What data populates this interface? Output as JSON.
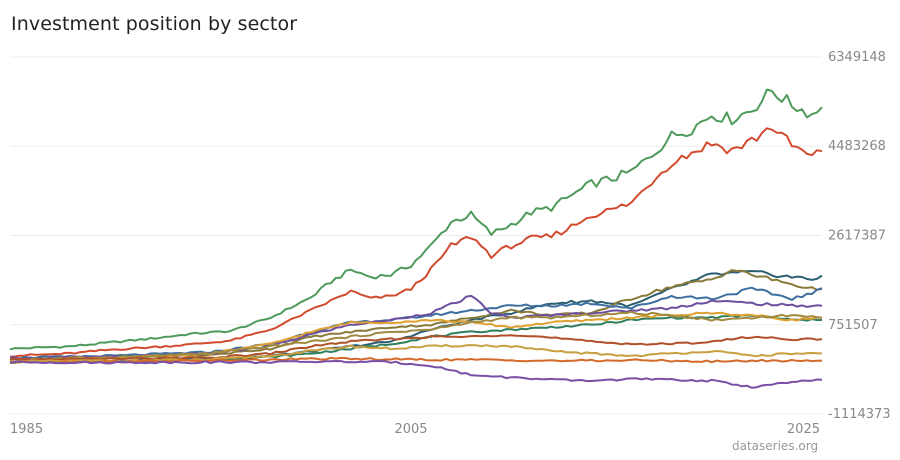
{
  "title": "Investment position by sector",
  "credit": "dataseries.org",
  "chart_data": {
    "type": "line",
    "title": "Investment position by sector",
    "xlabel": "",
    "ylabel": "",
    "xlim": [
      1985.0,
      2025.5
    ],
    "ylim": [
      -1114373,
      6349148
    ],
    "y_ticks": [
      6349148,
      4483268,
      2617387,
      751507,
      -1114373
    ],
    "x_ticks": [
      1985,
      2005,
      2025
    ],
    "grid": true,
    "legend": "none",
    "series": [
      {
        "color": "#4e9a5b",
        "points": [
          [
            1985,
            250000
          ],
          [
            1988,
            300000
          ],
          [
            1990,
            380000
          ],
          [
            1992,
            460000
          ],
          [
            1994,
            560000
          ],
          [
            1996,
            620000
          ],
          [
            1998,
            900000
          ],
          [
            2000,
            1320000
          ],
          [
            2001,
            1650000
          ],
          [
            2002,
            1900000
          ],
          [
            2003,
            1750000
          ],
          [
            2004,
            1800000
          ],
          [
            2005,
            2000000
          ],
          [
            2006,
            2400000
          ],
          [
            2007,
            2900000
          ],
          [
            2008,
            3050000
          ],
          [
            2009,
            2650000
          ],
          [
            2010,
            2850000
          ],
          [
            2011,
            3100000
          ],
          [
            2012,
            3200000
          ],
          [
            2013,
            3450000
          ],
          [
            2014,
            3700000
          ],
          [
            2015,
            3800000
          ],
          [
            2016,
            3950000
          ],
          [
            2017,
            4300000
          ],
          [
            2018,
            4700000
          ],
          [
            2019,
            4850000
          ],
          [
            2020,
            5150000
          ],
          [
            2021,
            5050000
          ],
          [
            2022,
            5250000
          ],
          [
            2023,
            5650000
          ],
          [
            2024,
            5350000
          ],
          [
            2025,
            5150000
          ],
          [
            2025.5,
            5300000
          ]
        ]
      },
      {
        "color": "#d24b2e",
        "points": [
          [
            1985,
            100000
          ],
          [
            1988,
            150000
          ],
          [
            1990,
            230000
          ],
          [
            1992,
            280000
          ],
          [
            1994,
            340000
          ],
          [
            1996,
            420000
          ],
          [
            1998,
            650000
          ],
          [
            2000,
            1050000
          ],
          [
            2001,
            1250000
          ],
          [
            2002,
            1450000
          ],
          [
            2003,
            1300000
          ],
          [
            2004,
            1350000
          ],
          [
            2005,
            1500000
          ],
          [
            2006,
            1900000
          ],
          [
            2007,
            2400000
          ],
          [
            2008,
            2600000
          ],
          [
            2009,
            2200000
          ],
          [
            2010,
            2400000
          ],
          [
            2011,
            2550000
          ],
          [
            2012,
            2600000
          ],
          [
            2013,
            2800000
          ],
          [
            2014,
            3050000
          ],
          [
            2015,
            3150000
          ],
          [
            2016,
            3300000
          ],
          [
            2017,
            3750000
          ],
          [
            2018,
            4150000
          ],
          [
            2019,
            4350000
          ],
          [
            2020,
            4550000
          ],
          [
            2021,
            4400000
          ],
          [
            2022,
            4600000
          ],
          [
            2023,
            4900000
          ],
          [
            2024,
            4500000
          ],
          [
            2025,
            4250000
          ],
          [
            2025.5,
            4380000
          ]
        ]
      },
      {
        "color": "#2d5f73",
        "points": [
          [
            1985,
            -30000
          ],
          [
            1990,
            0
          ],
          [
            1995,
            30000
          ],
          [
            1998,
            100000
          ],
          [
            2000,
            200000
          ],
          [
            2002,
            300000
          ],
          [
            2004,
            400000
          ],
          [
            2006,
            650000
          ],
          [
            2008,
            850000
          ],
          [
            2010,
            1000000
          ],
          [
            2012,
            1200000
          ],
          [
            2014,
            1250000
          ],
          [
            2016,
            1150000
          ],
          [
            2018,
            1500000
          ],
          [
            2020,
            1800000
          ],
          [
            2022,
            1850000
          ],
          [
            2024,
            1750000
          ],
          [
            2025,
            1700000
          ],
          [
            2025.5,
            1780000
          ]
        ]
      },
      {
        "color": "#8a7a3a",
        "points": [
          [
            1985,
            20000
          ],
          [
            1990,
            60000
          ],
          [
            1995,
            120000
          ],
          [
            1998,
            250000
          ],
          [
            2000,
            500000
          ],
          [
            2002,
            600000
          ],
          [
            2004,
            700000
          ],
          [
            2006,
            750000
          ],
          [
            2008,
            900000
          ],
          [
            2010,
            1050000
          ],
          [
            2012,
            950000
          ],
          [
            2014,
            1000000
          ],
          [
            2016,
            1300000
          ],
          [
            2018,
            1550000
          ],
          [
            2020,
            1700000
          ],
          [
            2021,
            1900000
          ],
          [
            2022,
            1800000
          ],
          [
            2024,
            1600000
          ],
          [
            2025,
            1500000
          ],
          [
            2025.5,
            1520000
          ]
        ]
      },
      {
        "color": "#3d6f9f",
        "points": [
          [
            1985,
            60000
          ],
          [
            1990,
            100000
          ],
          [
            1995,
            180000
          ],
          [
            1998,
            350000
          ],
          [
            2000,
            600000
          ],
          [
            2002,
            800000
          ],
          [
            2004,
            850000
          ],
          [
            2006,
            950000
          ],
          [
            2008,
            1050000
          ],
          [
            2010,
            1150000
          ],
          [
            2012,
            1150000
          ],
          [
            2014,
            1200000
          ],
          [
            2016,
            1100000
          ],
          [
            2018,
            1350000
          ],
          [
            2020,
            1300000
          ],
          [
            2022,
            1500000
          ],
          [
            2024,
            1300000
          ],
          [
            2025,
            1400000
          ],
          [
            2025.5,
            1500000
          ]
        ]
      },
      {
        "color": "#6d4f9f",
        "points": [
          [
            1985,
            50000
          ],
          [
            1990,
            80000
          ],
          [
            1995,
            150000
          ],
          [
            1998,
            300000
          ],
          [
            2000,
            550000
          ],
          [
            2002,
            750000
          ],
          [
            2004,
            850000
          ],
          [
            2006,
            1000000
          ],
          [
            2008,
            1350000
          ],
          [
            2009,
            1000000
          ],
          [
            2010,
            900000
          ],
          [
            2012,
            950000
          ],
          [
            2014,
            1000000
          ],
          [
            2016,
            1050000
          ],
          [
            2018,
            1100000
          ],
          [
            2020,
            1250000
          ],
          [
            2022,
            1200000
          ],
          [
            2024,
            1150000
          ],
          [
            2025.5,
            1150000
          ]
        ]
      },
      {
        "color": "#2f7f5f",
        "points": [
          [
            1985,
            -30000
          ],
          [
            1990,
            -20000
          ],
          [
            1995,
            20000
          ],
          [
            1998,
            80000
          ],
          [
            2000,
            150000
          ],
          [
            2002,
            250000
          ],
          [
            2004,
            350000
          ],
          [
            2006,
            500000
          ],
          [
            2008,
            600000
          ],
          [
            2010,
            650000
          ],
          [
            2012,
            700000
          ],
          [
            2014,
            750000
          ],
          [
            2016,
            850000
          ],
          [
            2018,
            900000
          ],
          [
            2020,
            900000
          ],
          [
            2022,
            950000
          ],
          [
            2024,
            850000
          ],
          [
            2025.5,
            850000
          ]
        ]
      },
      {
        "color": "#e0a030",
        "points": [
          [
            1985,
            10000
          ],
          [
            1990,
            50000
          ],
          [
            1995,
            150000
          ],
          [
            1998,
            350000
          ],
          [
            2000,
            600000
          ],
          [
            2002,
            800000
          ],
          [
            2004,
            800000
          ],
          [
            2006,
            850000
          ],
          [
            2008,
            800000
          ],
          [
            2010,
            700000
          ],
          [
            2012,
            800000
          ],
          [
            2014,
            850000
          ],
          [
            2016,
            900000
          ],
          [
            2018,
            950000
          ],
          [
            2020,
            1000000
          ],
          [
            2022,
            950000
          ],
          [
            2024,
            850000
          ],
          [
            2025.5,
            900000
          ]
        ]
      },
      {
        "color": "#a08a40",
        "points": [
          [
            1985,
            30000
          ],
          [
            1990,
            70000
          ],
          [
            1995,
            150000
          ],
          [
            1998,
            300000
          ],
          [
            2000,
            400000
          ],
          [
            2002,
            500000
          ],
          [
            2004,
            600000
          ],
          [
            2006,
            650000
          ],
          [
            2008,
            800000
          ],
          [
            2010,
            900000
          ],
          [
            2012,
            900000
          ],
          [
            2014,
            950000
          ],
          [
            2016,
            1000000
          ],
          [
            2018,
            950000
          ],
          [
            2020,
            850000
          ],
          [
            2022,
            900000
          ],
          [
            2024,
            950000
          ],
          [
            2025.5,
            900000
          ]
        ]
      },
      {
        "color": "#b0502a",
        "points": [
          [
            1985,
            20000
          ],
          [
            1990,
            40000
          ],
          [
            1995,
            60000
          ],
          [
            1998,
            150000
          ],
          [
            2000,
            300000
          ],
          [
            2002,
            400000
          ],
          [
            2004,
            450000
          ],
          [
            2006,
            500000
          ],
          [
            2008,
            500000
          ],
          [
            2010,
            550000
          ],
          [
            2012,
            480000
          ],
          [
            2014,
            400000
          ],
          [
            2016,
            350000
          ],
          [
            2018,
            350000
          ],
          [
            2020,
            400000
          ],
          [
            2022,
            500000
          ],
          [
            2024,
            450000
          ],
          [
            2025.5,
            450000
          ]
        ]
      },
      {
        "color": "#c9a040",
        "points": [
          [
            1985,
            -20000
          ],
          [
            1990,
            0
          ],
          [
            1995,
            20000
          ],
          [
            1998,
            100000
          ],
          [
            2000,
            200000
          ],
          [
            2002,
            300000
          ],
          [
            2004,
            250000
          ],
          [
            2006,
            300000
          ],
          [
            2008,
            320000
          ],
          [
            2010,
            300000
          ],
          [
            2012,
            200000
          ],
          [
            2014,
            150000
          ],
          [
            2016,
            100000
          ],
          [
            2018,
            150000
          ],
          [
            2020,
            200000
          ],
          [
            2022,
            100000
          ],
          [
            2024,
            150000
          ],
          [
            2025.5,
            150000
          ]
        ]
      },
      {
        "color": "#d46a2a",
        "points": [
          [
            1985,
            -30000
          ],
          [
            1990,
            -20000
          ],
          [
            1995,
            0
          ],
          [
            1998,
            20000
          ],
          [
            2000,
            40000
          ],
          [
            2002,
            40000
          ],
          [
            2004,
            30000
          ],
          [
            2006,
            20000
          ],
          [
            2008,
            20000
          ],
          [
            2010,
            10000
          ],
          [
            2012,
            0
          ],
          [
            2014,
            0
          ],
          [
            2016,
            10000
          ],
          [
            2018,
            0
          ],
          [
            2020,
            -20000
          ],
          [
            2022,
            0
          ],
          [
            2024,
            0
          ],
          [
            2025.5,
            0
          ]
        ]
      },
      {
        "color": "#7a4fa8",
        "points": [
          [
            1985,
            -30000
          ],
          [
            1990,
            -40000
          ],
          [
            1995,
            -30000
          ],
          [
            1998,
            -30000
          ],
          [
            2000,
            -20000
          ],
          [
            2002,
            -20000
          ],
          [
            2004,
            -30000
          ],
          [
            2006,
            -100000
          ],
          [
            2008,
            -300000
          ],
          [
            2010,
            -350000
          ],
          [
            2012,
            -400000
          ],
          [
            2014,
            -420000
          ],
          [
            2016,
            -380000
          ],
          [
            2018,
            -400000
          ],
          [
            2020,
            -420000
          ],
          [
            2022,
            -550000
          ],
          [
            2024,
            -450000
          ],
          [
            2025.5,
            -400000
          ]
        ]
      }
    ]
  }
}
